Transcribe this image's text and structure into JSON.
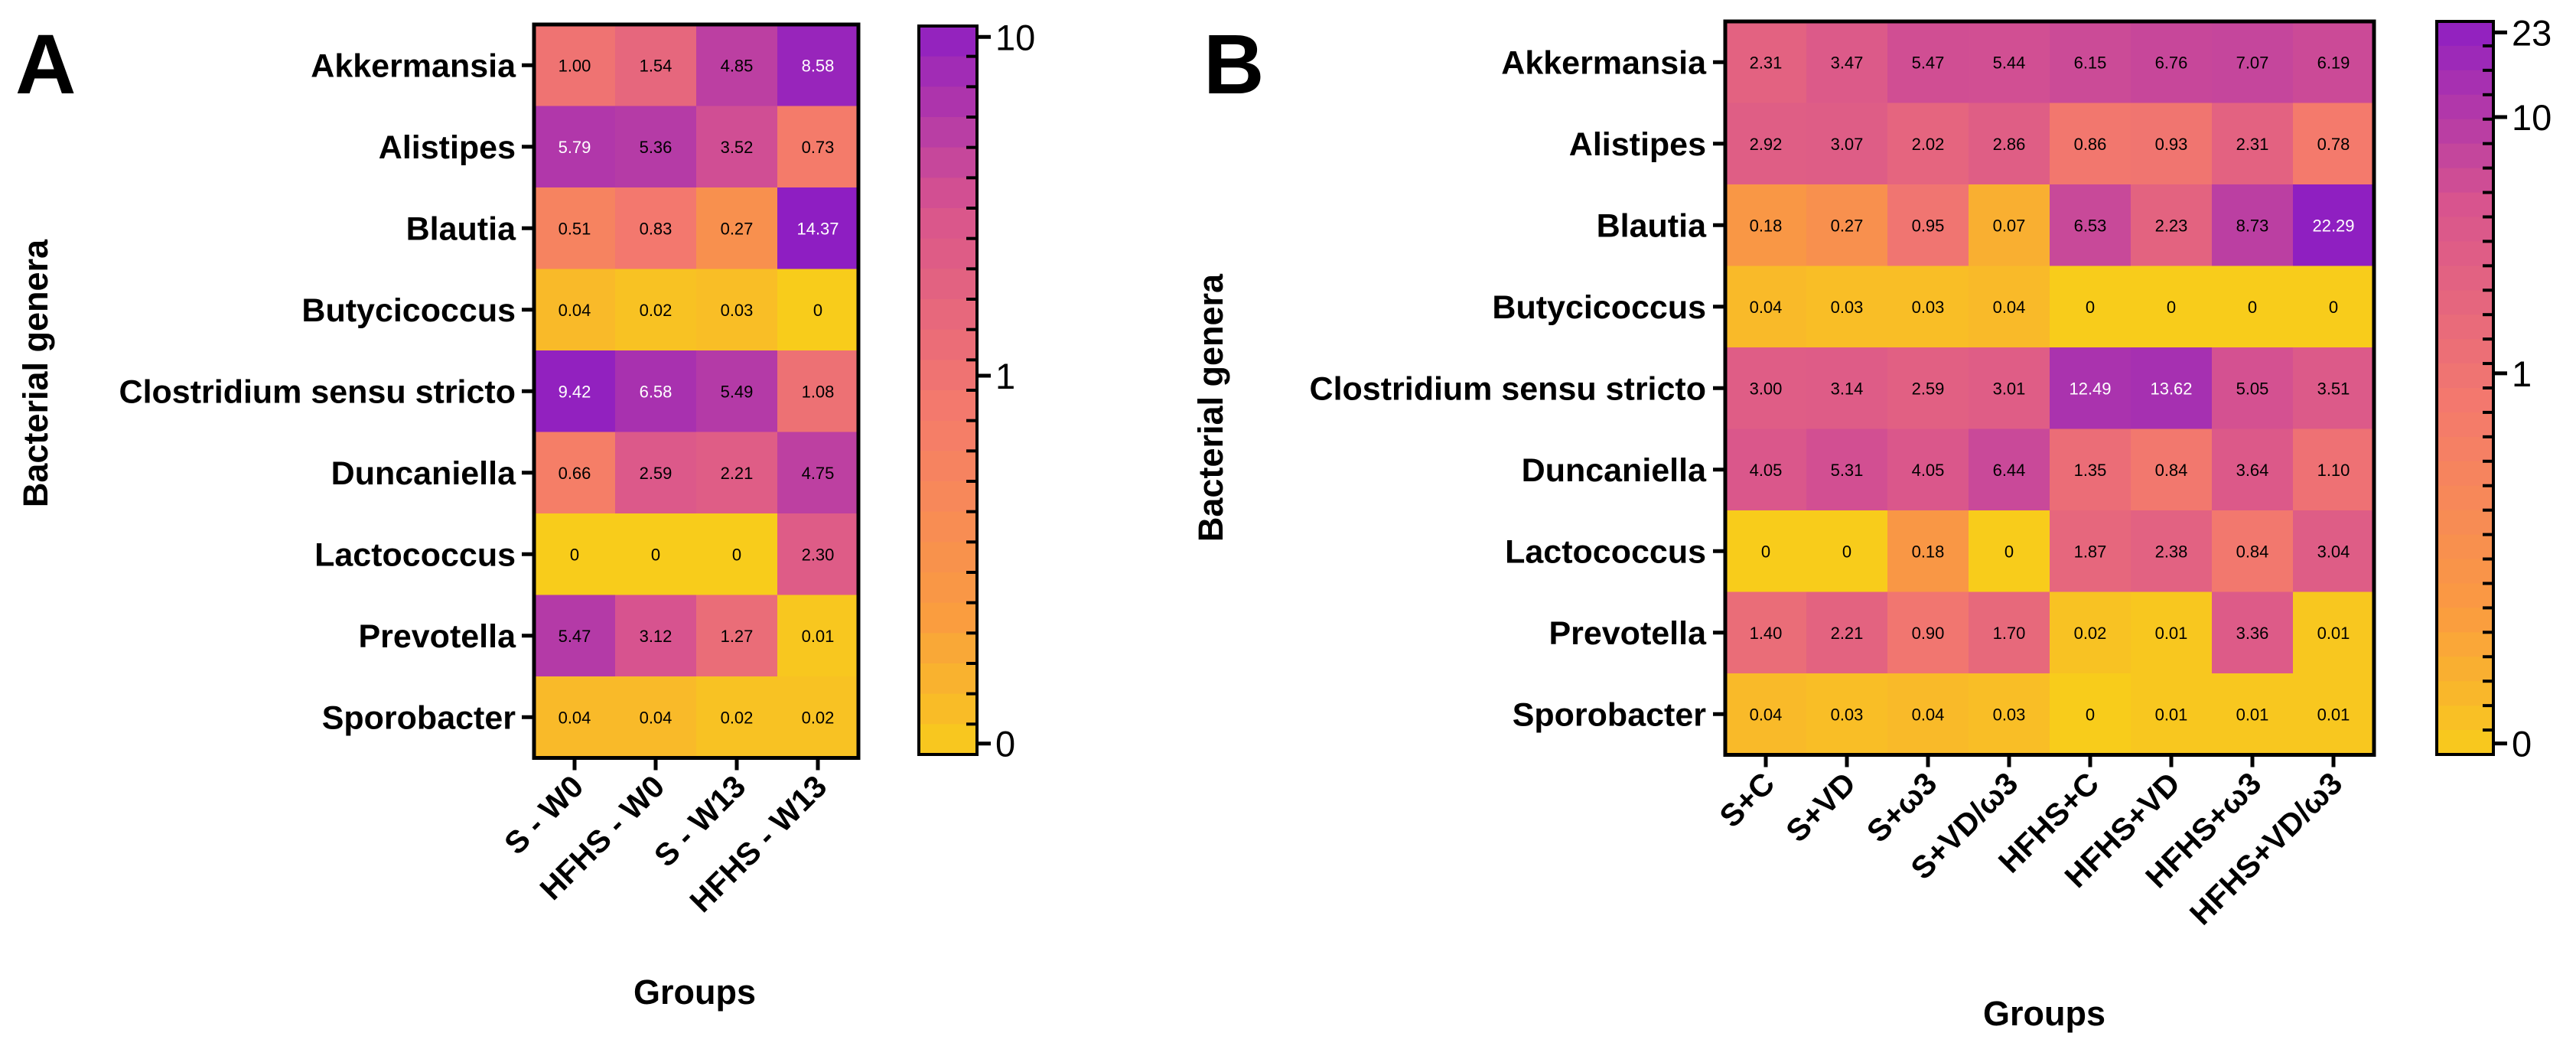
{
  "chart_data": [
    {
      "type": "heatmap",
      "panel_label": "A",
      "xlabel": "Groups",
      "ylabel": "Bacterial genera",
      "rows": [
        "Akkermansia",
        "Alistipes",
        "Blautia",
        "Butycicoccus",
        "Clostridium sensu stricto",
        "Duncaniella",
        "Lactococcus",
        "Prevotella",
        "Sporobacter"
      ],
      "columns": [
        "S - W0",
        "HFHS - W0",
        "S - W13",
        "HFHS - W13"
      ],
      "values": [
        [
          "1.00",
          "1.54",
          "4.85",
          "8.58"
        ],
        [
          "5.79",
          "5.36",
          "3.52",
          "0.73"
        ],
        [
          "0.51",
          "0.83",
          "0.27",
          "14.37"
        ],
        [
          "0.04",
          "0.02",
          "0.03",
          "0"
        ],
        [
          "9.42",
          "6.58",
          "5.49",
          "1.08"
        ],
        [
          "0.66",
          "2.59",
          "2.21",
          "4.75"
        ],
        [
          "0",
          "0",
          "0",
          "2.30"
        ],
        [
          "5.47",
          "3.12",
          "1.27",
          "0.01"
        ],
        [
          "0.04",
          "0.04",
          "0.02",
          "0.02"
        ]
      ],
      "colorbar": {
        "min": 0,
        "max": 10,
        "ticks": [
          "0",
          "1",
          "10"
        ],
        "tick_values": [
          0,
          1,
          10
        ],
        "max_value": 10,
        "segments": 24,
        "scale": "log-like"
      }
    },
    {
      "type": "heatmap",
      "panel_label": "B",
      "xlabel": "Groups",
      "ylabel": "Bacterial genera",
      "rows": [
        "Akkermansia",
        "Alistipes",
        "Blautia",
        "Butycicoccus",
        "Clostridium sensu stricto",
        "Duncaniella",
        "Lactococcus",
        "Prevotella",
        "Sporobacter"
      ],
      "columns": [
        "S+C",
        "S+VD",
        "S+ω3",
        "S+VD/ω3",
        "HFHS+C",
        "HFHS+VD",
        "HFHS+ω3",
        "HFHS+VD/ω3"
      ],
      "values": [
        [
          "2.31",
          "3.47",
          "5.47",
          "5.44",
          "6.15",
          "6.76",
          "7.07",
          "6.19"
        ],
        [
          "2.92",
          "3.07",
          "2.02",
          "2.86",
          "0.86",
          "0.93",
          "2.31",
          "0.78"
        ],
        [
          "0.18",
          "0.27",
          "0.95",
          "0.07",
          "6.53",
          "2.23",
          "8.73",
          "22.29"
        ],
        [
          "0.04",
          "0.03",
          "0.03",
          "0.04",
          "0",
          "0",
          "0",
          "0"
        ],
        [
          "3.00",
          "3.14",
          "2.59",
          "3.01",
          "12.49",
          "13.62",
          "5.05",
          "3.51"
        ],
        [
          "4.05",
          "5.31",
          "4.05",
          "6.44",
          "1.35",
          "0.84",
          "3.64",
          "1.10"
        ],
        [
          "0",
          "0",
          "0.18",
          "0",
          "1.87",
          "2.38",
          "0.84",
          "3.04"
        ],
        [
          "1.40",
          "2.21",
          "0.90",
          "1.70",
          "0.02",
          "0.01",
          "3.36",
          "0.01"
        ],
        [
          "0.04",
          "0.03",
          "0.04",
          "0.03",
          "0",
          "0.01",
          "0.01",
          "0.01"
        ]
      ],
      "colorbar": {
        "min": 0,
        "max": 23,
        "ticks": [
          "0",
          "1",
          "10",
          "23"
        ],
        "tick_values": [
          0,
          1,
          10,
          23
        ],
        "max_value": 23,
        "segments": 30,
        "scale": "log-like"
      }
    }
  ],
  "colors": {
    "low": "#f8cc1b",
    "mid_low": "#fa9a41",
    "mid": "#f47a6c",
    "mid_high": "#d8548e",
    "high": "#8e1ec2",
    "border": "#000000"
  }
}
